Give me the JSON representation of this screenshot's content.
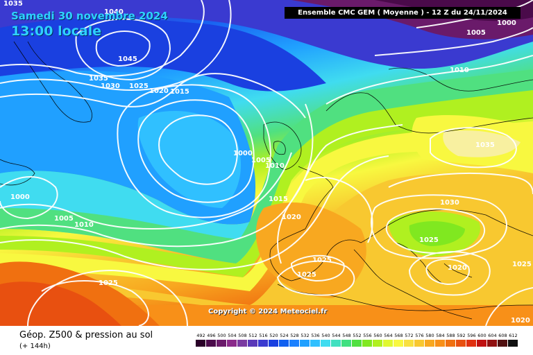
{
  "header": {
    "date_line": "Samedi 30 novembre 2024",
    "time_line": "13:00 locale",
    "run_info": "Ensemble CMC GEM  ( Moyenne )  -  12 Z du 24/11/2024"
  },
  "copyright": "Copyright © 2024 Meteociel.fr",
  "footer": {
    "title": "Géop. Z500 & pression au sol",
    "subtitle": "(+ 144h)"
  },
  "scale": {
    "values": [
      "492",
      "496",
      "500",
      "504",
      "508",
      "512",
      "516",
      "520",
      "524",
      "528",
      "532",
      "536",
      "540",
      "544",
      "548",
      "552",
      "556",
      "560",
      "564",
      "568",
      "572",
      "576",
      "580",
      "584",
      "588",
      "592",
      "596",
      "600",
      "604",
      "608",
      "612"
    ],
    "colors": [
      "#2a0028",
      "#4a0a4a",
      "#6a1a6a",
      "#8a2a8a",
      "#7a3aa0",
      "#5a38b8",
      "#3a3ad0",
      "#1a40e0",
      "#1060f0",
      "#1a80ff",
      "#20a0ff",
      "#30c0ff",
      "#40dcf0",
      "#40e0c0",
      "#40e080",
      "#50e040",
      "#80e820",
      "#b0f020",
      "#e0f830",
      "#f8f840",
      "#f8e040",
      "#f8c830",
      "#f8a820",
      "#f89018",
      "#f07010",
      "#e85010",
      "#e03010",
      "#c01010",
      "#901010",
      "#501010",
      "#101010"
    ]
  },
  "isobar_labels": [
    {
      "text": "1035",
      "name": "isobar-label-1035-a"
    },
    {
      "text": "1040",
      "name": "isobar-label-1040"
    },
    {
      "text": "1045",
      "name": "isobar-label-1045"
    },
    {
      "text": "1035",
      "name": "isobar-label-1035-b"
    },
    {
      "text": "1030",
      "name": "isobar-label-1030-a"
    },
    {
      "text": "1025",
      "name": "isobar-label-1025-a"
    },
    {
      "text": "1020",
      "name": "isobar-label-1020-a"
    },
    {
      "text": "1015",
      "name": "isobar-label-1015-a"
    },
    {
      "text": "1000",
      "name": "isobar-label-1000-a"
    },
    {
      "text": "1005",
      "name": "isobar-label-1005-a"
    },
    {
      "text": "1010",
      "name": "isobar-label-1010-a"
    },
    {
      "text": "1000",
      "name": "isobar-label-1000-b"
    },
    {
      "text": "1005",
      "name": "isobar-label-1005-b"
    },
    {
      "text": "1010",
      "name": "isobar-label-1010-b"
    },
    {
      "text": "1015",
      "name": "isobar-label-1015-b"
    },
    {
      "text": "1020",
      "name": "isobar-label-1020-b"
    },
    {
      "text": "1025",
      "name": "isobar-label-1025-b"
    },
    {
      "text": "1025",
      "name": "isobar-label-1025-c"
    },
    {
      "text": "1025",
      "name": "isobar-label-1025-d"
    },
    {
      "text": "1030",
      "name": "isobar-label-1030-b"
    },
    {
      "text": "1025",
      "name": "isobar-label-1025-e"
    },
    {
      "text": "1020",
      "name": "isobar-label-1020-c"
    },
    {
      "text": "1025",
      "name": "isobar-label-1025-f"
    },
    {
      "text": "1035",
      "name": "isobar-label-1035-c"
    },
    {
      "text": "1010",
      "name": "isobar-label-1010-c"
    },
    {
      "text": "1005",
      "name": "isobar-label-1005-c"
    },
    {
      "text": "1000",
      "name": "isobar-label-1000-c"
    },
    {
      "text": "1020",
      "name": "isobar-label-1020-d"
    }
  ]
}
